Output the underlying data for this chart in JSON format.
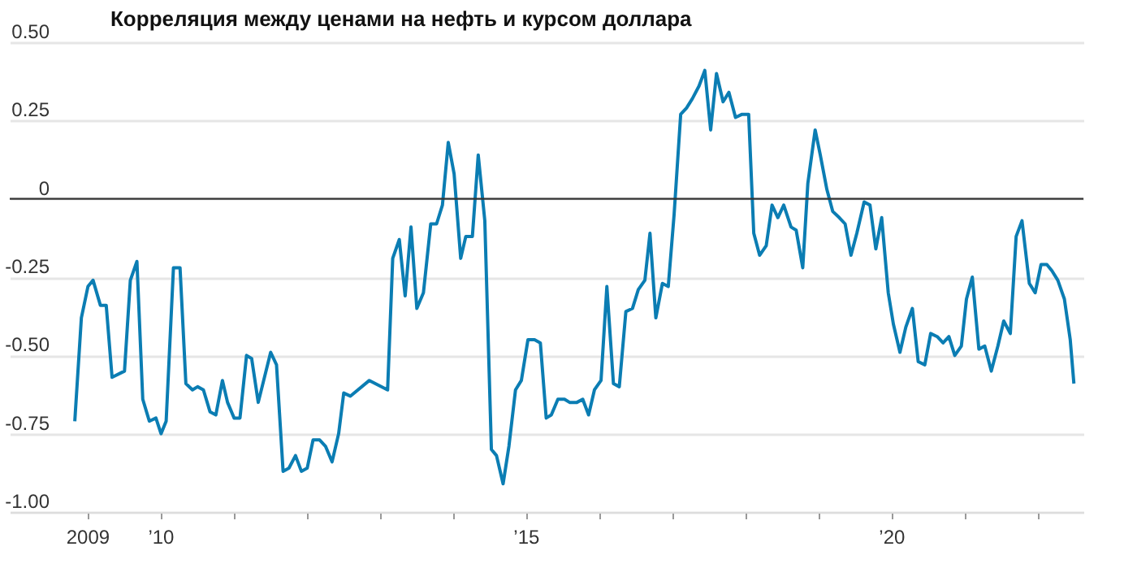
{
  "chart_data": {
    "type": "line",
    "title": "Корреляция между ценами на нефть и курсом доллара",
    "xlim": [
      2007.94,
      2022.63
    ],
    "ylim": [
      -1.0,
      0.5
    ],
    "xticks": [
      2009,
      {
        "value": 2010,
        "label": "’10"
      },
      {
        "value": 2011,
        "label": null
      },
      {
        "value": 2012,
        "label": null
      },
      {
        "value": 2013,
        "label": null
      },
      {
        "value": 2014,
        "label": null
      },
      {
        "value": 2015,
        "label": "’15"
      },
      {
        "value": 2016,
        "label": null
      },
      {
        "value": 2017,
        "label": null
      },
      {
        "value": 2018,
        "label": null
      },
      {
        "value": 2019,
        "label": null
      },
      {
        "value": 2020,
        "label": "’20"
      },
      {
        "value": 2021,
        "label": null
      },
      {
        "value": 2022,
        "label": null
      }
    ],
    "yticks": [
      {
        "value": 0.5,
        "label": "0.50"
      },
      0.25,
      0,
      -0.25,
      {
        "value": -0.5,
        "label": "-0.50"
      },
      -0.75,
      {
        "value": -1.0,
        "label": "-1.00"
      }
    ],
    "grid": "y",
    "ref_lines": [
      {
        "axis": "y",
        "value": 0,
        "label": null,
        "color": "#333333"
      }
    ],
    "x": [
      2008.83,
      2008.92,
      2009.01,
      2009.08,
      2009.18,
      2009.26,
      2009.34,
      2009.51,
      2009.59,
      2009.68,
      2009.76,
      2009.85,
      2009.94,
      2010.01,
      2010.08,
      2010.18,
      2010.27,
      2010.35,
      2010.44,
      2010.51,
      2010.59,
      2010.68,
      2010.76,
      2010.85,
      2010.92,
      2011.01,
      2011.09,
      2011.18,
      2011.25,
      2011.34,
      2011.51,
      2011.59,
      2011.68,
      2011.76,
      2011.85,
      2011.93,
      2012.01,
      2012.09,
      2012.18,
      2012.26,
      2012.35,
      2012.44,
      2012.51,
      2012.6,
      2012.86,
      2013.11,
      2013.18,
      2013.27,
      2013.35,
      2013.43,
      2013.51,
      2013.6,
      2013.7,
      2013.78,
      2013.86,
      2013.94,
      2014.02,
      2014.11,
      2014.18,
      2014.27,
      2014.35,
      2014.44,
      2014.53,
      2014.6,
      2014.69,
      2014.77,
      2014.86,
      2014.94,
      2015.03,
      2015.12,
      2015.2,
      2015.28,
      2015.35,
      2015.44,
      2015.53,
      2015.6,
      2015.7,
      2015.78,
      2015.86,
      2015.94,
      2016.03,
      2016.11,
      2016.2,
      2016.28,
      2016.37,
      2016.46,
      2016.54,
      2016.63,
      2016.7,
      2016.78,
      2016.87,
      2016.95,
      2017.03,
      2017.12,
      2017.2,
      2017.28,
      2017.37,
      2017.45,
      2017.53,
      2017.61,
      2017.7,
      2017.78,
      2017.87,
      2017.96,
      2018.05,
      2018.12,
      2018.2,
      2018.29,
      2018.37,
      2018.45,
      2018.53,
      2018.63,
      2018.7,
      2018.79,
      2018.86,
      2018.96,
      2019.03,
      2019.12,
      2019.2,
      2019.29,
      2019.37,
      2019.45,
      2019.53,
      2019.63,
      2019.71,
      2019.79,
      2019.87,
      2019.96,
      2020.03,
      2020.12,
      2020.2,
      2020.29,
      2020.37,
      2020.46,
      2020.54,
      2020.63,
      2020.71,
      2020.79,
      2020.87,
      2020.96,
      2021.03,
      2021.11,
      2021.2,
      2021.28,
      2021.37,
      2021.46,
      2021.54,
      2021.63,
      2021.71,
      2021.79,
      2021.89,
      2021.97,
      2022.05,
      2022.13,
      2022.2,
      2022.28,
      2022.37,
      2022.45,
      2022.5
    ],
    "series": [
      {
        "color": "#0b7db3",
        "values": [
          -0.71,
          -0.38,
          -0.28,
          -0.26,
          -0.34,
          -0.34,
          -0.57,
          -0.55,
          -0.26,
          -0.2,
          -0.64,
          -0.71,
          -0.7,
          -0.75,
          -0.71,
          -0.22,
          -0.22,
          -0.59,
          -0.61,
          -0.6,
          -0.61,
          -0.68,
          -0.69,
          -0.58,
          -0.65,
          -0.7,
          -0.7,
          -0.5,
          -0.51,
          -0.65,
          -0.49,
          -0.53,
          -0.87,
          -0.86,
          -0.82,
          -0.87,
          -0.86,
          -0.77,
          -0.77,
          -0.79,
          -0.84,
          -0.75,
          -0.62,
          -0.63,
          -0.58,
          -0.61,
          -0.19,
          -0.13,
          -0.31,
          -0.09,
          -0.35,
          -0.3,
          -0.08,
          -0.08,
          -0.02,
          0.18,
          0.08,
          -0.19,
          -0.12,
          -0.12,
          0.14,
          -0.07,
          -0.8,
          -0.82,
          -0.91,
          -0.79,
          -0.61,
          -0.58,
          -0.45,
          -0.45,
          -0.46,
          -0.7,
          -0.69,
          -0.64,
          -0.64,
          -0.65,
          -0.65,
          -0.64,
          -0.69,
          -0.61,
          -0.58,
          -0.28,
          -0.59,
          -0.6,
          -0.36,
          -0.35,
          -0.29,
          -0.26,
          -0.11,
          -0.38,
          -0.27,
          -0.28,
          -0.05,
          0.27,
          0.29,
          0.32,
          0.36,
          0.41,
          0.22,
          0.4,
          0.31,
          0.34,
          0.26,
          0.27,
          0.27,
          -0.11,
          -0.18,
          -0.15,
          -0.02,
          -0.06,
          -0.02,
          -0.09,
          -0.1,
          -0.22,
          0.05,
          0.22,
          0.14,
          0.03,
          -0.04,
          -0.06,
          -0.08,
          -0.18,
          -0.11,
          -0.01,
          -0.02,
          -0.16,
          -0.06,
          -0.3,
          -0.4,
          -0.49,
          -0.41,
          -0.35,
          -0.52,
          -0.53,
          -0.43,
          -0.44,
          -0.46,
          -0.44,
          -0.5,
          -0.47,
          -0.32,
          -0.25,
          -0.48,
          -0.47,
          -0.55,
          -0.47,
          -0.39,
          -0.43,
          -0.12,
          -0.07,
          -0.27,
          -0.3,
          -0.21,
          -0.21,
          -0.23,
          -0.26,
          -0.32,
          -0.45,
          -0.59
        ]
      }
    ]
  }
}
